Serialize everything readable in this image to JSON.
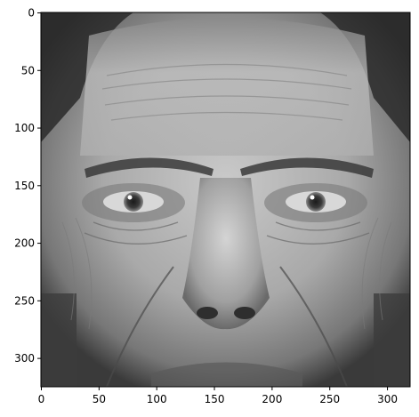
{
  "image": {
    "subject": "",
    "colormap": "gray"
  },
  "chart_data": {
    "type": "heatmap",
    "title": "",
    "xlabel": "",
    "ylabel": "",
    "xlim": [
      0,
      320
    ],
    "ylim": [
      325,
      0
    ],
    "x_ticks": [
      0,
      50,
      100,
      150,
      200,
      250,
      300
    ],
    "y_ticks": [
      0,
      50,
      100,
      150,
      200,
      250,
      300
    ],
    "x_tick_labels": [
      "0",
      "50",
      "100",
      "150",
      "200",
      "250",
      "300"
    ],
    "y_tick_labels": [
      "0",
      "50",
      "100",
      "150",
      "200",
      "250",
      "300"
    ],
    "grid": false,
    "legend": "none"
  }
}
